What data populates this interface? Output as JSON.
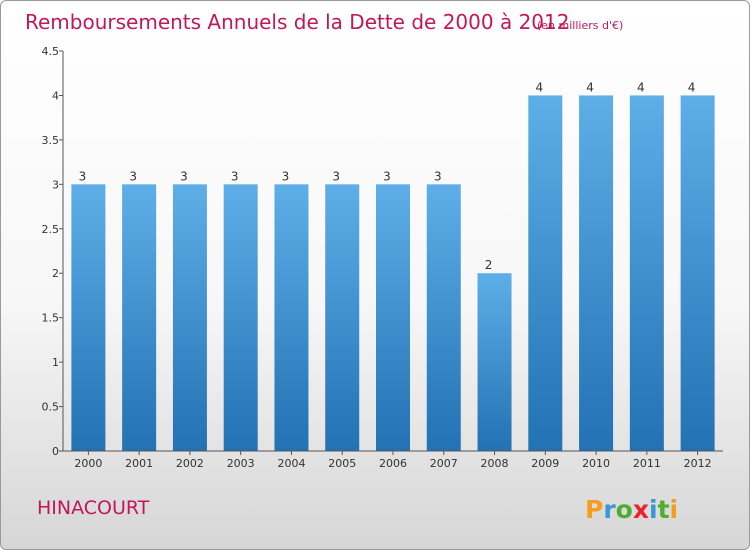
{
  "chart_data": {
    "type": "bar",
    "title": "Remboursements Annuels de la Dette de 2000 à 2012",
    "subtitle": "(en milliers d'€)",
    "categories": [
      "2000",
      "2001",
      "2002",
      "2003",
      "2004",
      "2005",
      "2006",
      "2007",
      "2008",
      "2009",
      "2010",
      "2011",
      "2012"
    ],
    "values": [
      3,
      3,
      3,
      3,
      3,
      3,
      3,
      3,
      2,
      4,
      4,
      4,
      4
    ],
    "data_labels": [
      "3",
      "3",
      "3",
      "3",
      "3",
      "3",
      "3",
      "3",
      "2",
      "4",
      "4",
      "4",
      "4"
    ],
    "y_ticks": [
      "0",
      "0.5",
      "1",
      "1.5",
      "2",
      "2.5",
      "3",
      "3.5",
      "4",
      "4.5"
    ],
    "ylim": [
      0,
      4.5
    ],
    "xlabel": "",
    "ylabel": "",
    "bar_color": "#3d8fd4",
    "bar_color_top": "#5eaee8",
    "bar_color_bottom": "#2272b4"
  },
  "footer": {
    "town": "HINACOURT",
    "brand_letters": [
      "P",
      "r",
      "o",
      "x",
      "i",
      "t",
      "i"
    ],
    "brand_colors": [
      "#f59d1e",
      "#3a97d6",
      "#4fae32",
      "#e8242e",
      "#3a97d6",
      "#4fae32",
      "#f59d1e"
    ]
  },
  "colors": {
    "title": "#c0185a",
    "axis": "#555555"
  }
}
